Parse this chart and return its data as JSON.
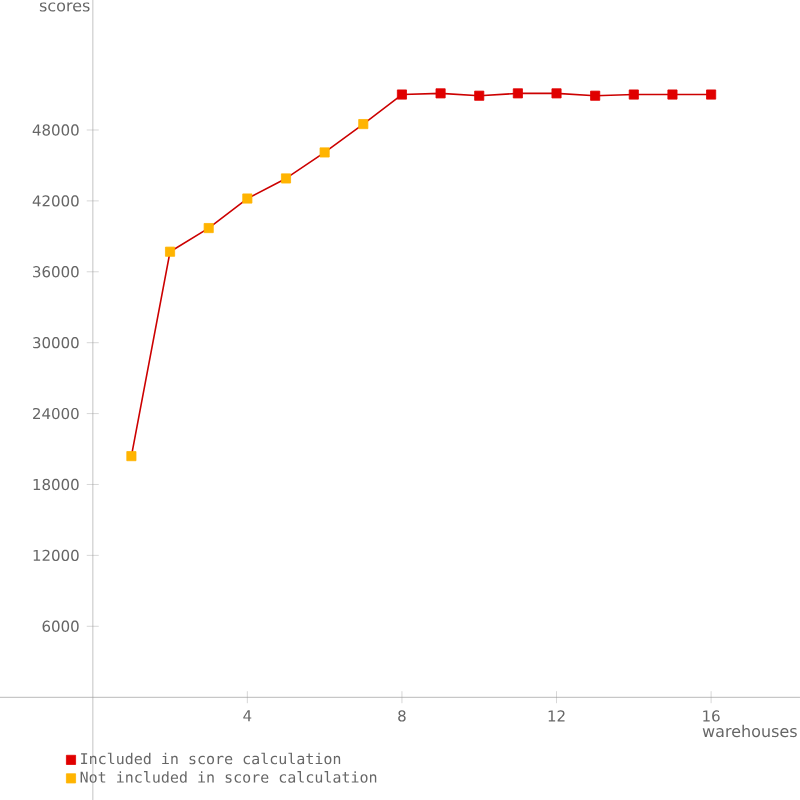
{
  "chart_data": {
    "type": "line",
    "xlabel": "warehouses",
    "ylabel": "scores",
    "xlim": [
      -2.4,
      18.3
    ],
    "ylim": [
      -8700,
      59000
    ],
    "xticks": [
      4,
      8,
      12,
      16
    ],
    "yticks": [
      6000,
      12000,
      18000,
      24000,
      30000,
      36000,
      42000,
      48000
    ],
    "marker": "square",
    "legend": "bottom left",
    "series": [
      {
        "marker": "none",
        "color": "#cc0000",
        "x": [
          1,
          2,
          3,
          4,
          5,
          6,
          7,
          8,
          9,
          10,
          11,
          12,
          13,
          14,
          15,
          16
        ],
        "values": [
          20400,
          37700,
          39700,
          42200,
          43900,
          46100,
          48500,
          51000,
          51100,
          50900,
          51100,
          51100,
          50900,
          51000,
          51000,
          51000
        ]
      },
      {
        "type": "scatter",
        "name": "Included in score calculation",
        "color": "#e00000",
        "x": [
          8,
          9,
          10,
          11,
          12,
          13,
          14,
          15,
          16
        ],
        "values": [
          51000,
          51100,
          50900,
          51100,
          51100,
          50900,
          51000,
          51000,
          51000
        ]
      },
      {
        "type": "scatter",
        "name": "Not included in score calculation",
        "color": "#ffb400",
        "x": [
          1,
          2,
          3,
          4,
          5,
          6,
          7
        ],
        "values": [
          20400,
          37700,
          39700,
          42200,
          43900,
          46100,
          48500
        ]
      }
    ]
  }
}
